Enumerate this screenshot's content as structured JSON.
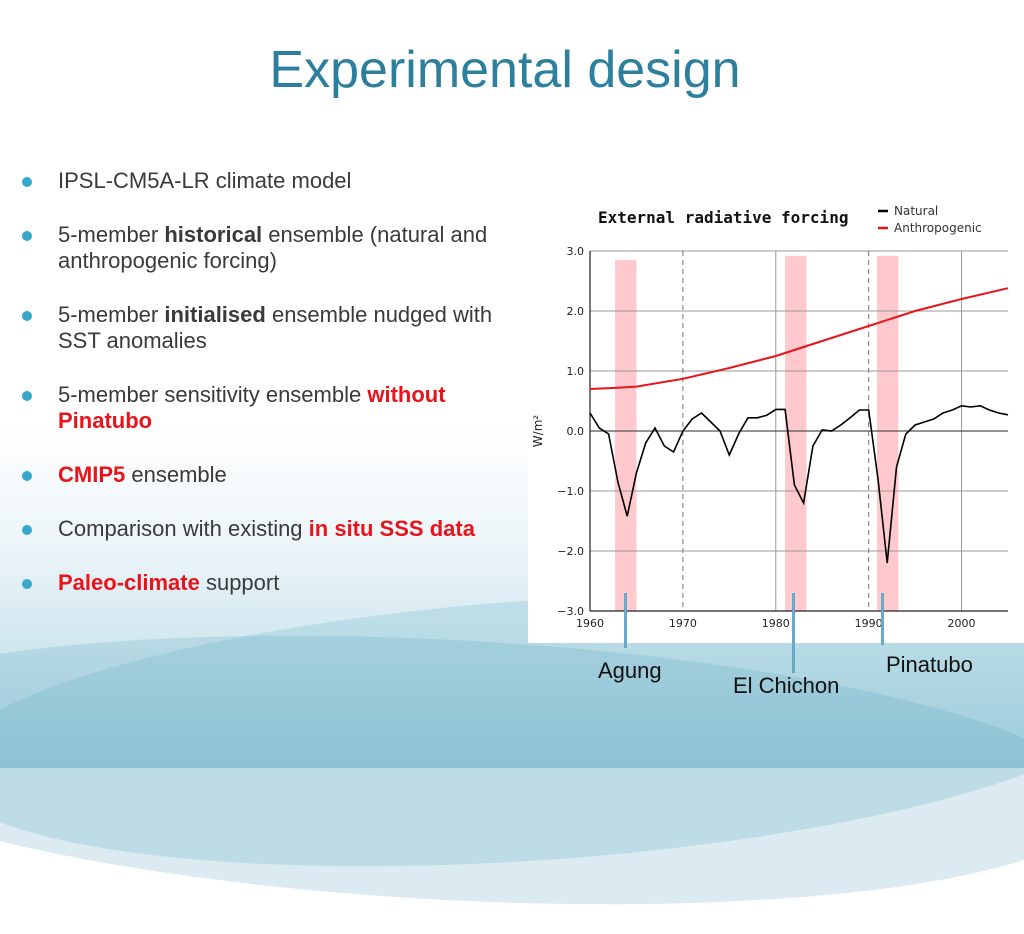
{
  "slide": {
    "title": "Experimental design"
  },
  "bullets": [
    {
      "parts": [
        {
          "text": "IPSL-CM5A-LR climate model",
          "style": "normal"
        }
      ]
    },
    {
      "parts": [
        {
          "text": "5-member ",
          "style": "normal"
        },
        {
          "text": "historical",
          "style": "bold"
        },
        {
          "text": " ensemble (natural and anthropogenic forcing)",
          "style": "normal"
        }
      ]
    },
    {
      "parts": [
        {
          "text": "5-member ",
          "style": "normal"
        },
        {
          "text": "initialised",
          "style": "bold"
        },
        {
          "text": " ensemble nudged with SST anomalies",
          "style": "normal"
        }
      ]
    },
    {
      "parts": [
        {
          "text": "5-member sensitivity ensemble ",
          "style": "normal"
        },
        {
          "text": "without Pinatubo",
          "style": "red"
        }
      ]
    },
    {
      "parts": [
        {
          "text": "CMIP5",
          "style": "red"
        },
        {
          "text": " ensemble",
          "style": "normal"
        }
      ]
    },
    {
      "parts": [
        {
          "text": "Comparison with existing ",
          "style": "normal"
        },
        {
          "text": "in situ SSS data",
          "style": "red"
        }
      ]
    },
    {
      "parts": [
        {
          "text": "Paleo-climate",
          "style": "red"
        },
        {
          "text": " support",
          "style": "normal"
        }
      ]
    }
  ],
  "callouts": {
    "agung": "Agung",
    "el_chichon": "El Chichon",
    "pinatubo": "Pinatubo"
  },
  "colors": {
    "title": "#2d7f9e",
    "bullet": "#35a8cc",
    "highlight": "#e8141b",
    "natural": "#000000",
    "anthropogenic": "#e8141b",
    "eruption_band": "#ffc0c4"
  },
  "chart_data": {
    "type": "line",
    "title": "External radiative forcing",
    "ylabel": "W/m²",
    "xlabel": "",
    "xlim": [
      1960,
      2005
    ],
    "ylim": [
      -3.0,
      3.0
    ],
    "xticks": [
      1960,
      1970,
      1980,
      1990,
      2000
    ],
    "xtick_labels": [
      "1960",
      "1970",
      "1980",
      "1990",
      "2000"
    ],
    "yticks": [
      3.0,
      2.0,
      1.0,
      0.0,
      -1.0,
      -2.0,
      -3.0
    ],
    "ytick_labels": [
      "3.0",
      "2.0",
      "1.0",
      "0.0",
      "−1.0",
      "−2.0",
      "−3.0"
    ],
    "grid": true,
    "legend": "top-right",
    "dashed_lines_x": [
      1970,
      1990
    ],
    "eruption_bands": [
      {
        "x0": 1962.7,
        "x1": 1965.0,
        "ymax": 2.85
      },
      {
        "x0": 1981.0,
        "x1": 1983.3,
        "ymax": 2.92
      },
      {
        "x0": 1990.9,
        "x1": 1993.2,
        "ymax": 2.92
      }
    ],
    "series": [
      {
        "name": "Natural",
        "x": [
          1960,
          1961,
          1962,
          1963,
          1964,
          1965,
          1966,
          1967,
          1968,
          1969,
          1970,
          1971,
          1972,
          1973,
          1974,
          1975,
          1976,
          1977,
          1978,
          1979,
          1980,
          1981,
          1982,
          1983,
          1984,
          1985,
          1986,
          1987,
          1988,
          1989,
          1990,
          1991,
          1992,
          1993,
          1994,
          1995,
          1996,
          1997,
          1998,
          1999,
          2000,
          2001,
          2002,
          2003,
          2004,
          2005
        ],
        "y": [
          0.3,
          0.05,
          -0.05,
          -0.85,
          -1.42,
          -0.7,
          -0.2,
          0.05,
          -0.25,
          -0.35,
          0.0,
          0.2,
          0.3,
          0.15,
          0.0,
          -0.4,
          -0.05,
          0.22,
          0.22,
          0.26,
          0.36,
          0.36,
          -0.9,
          -1.2,
          -0.25,
          0.02,
          0.0,
          0.1,
          0.22,
          0.35,
          0.35,
          -0.8,
          -2.2,
          -0.6,
          -0.05,
          0.1,
          0.15,
          0.2,
          0.3,
          0.35,
          0.42,
          0.4,
          0.42,
          0.35,
          0.3,
          0.27
        ]
      },
      {
        "name": "Anthropogenic",
        "x": [
          1960,
          1963,
          1965,
          1970,
          1975,
          1980,
          1985,
          1990,
          1995,
          2000,
          2005
        ],
        "y": [
          0.7,
          0.72,
          0.74,
          0.87,
          1.05,
          1.25,
          1.5,
          1.75,
          2.0,
          2.2,
          2.38
        ]
      }
    ]
  }
}
